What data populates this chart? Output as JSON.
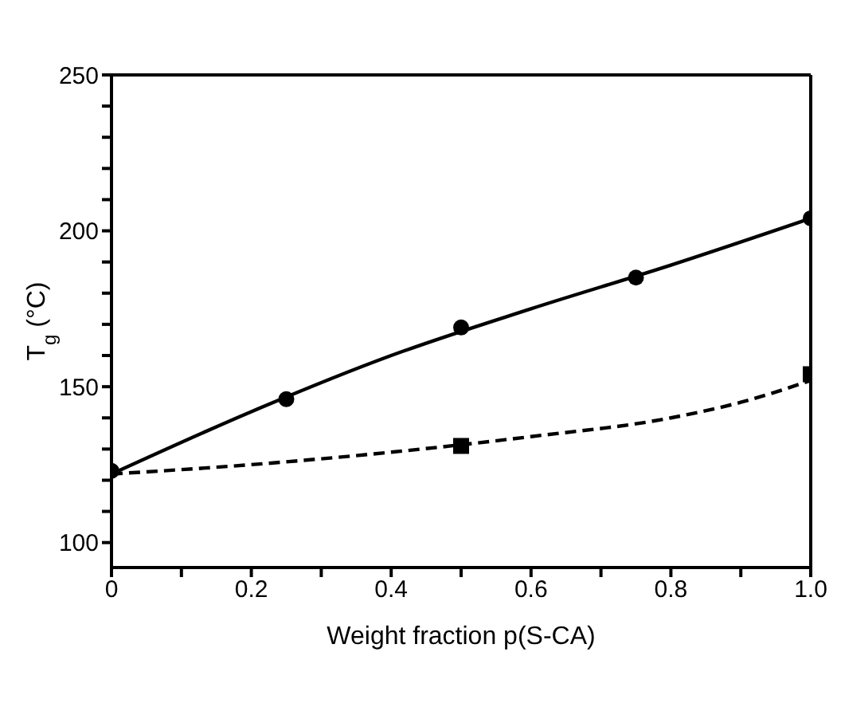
{
  "chart_data": {
    "type": "scatter",
    "xlabel": "Weight fraction p(S-CA)",
    "ylabel": "T$_{g}$ (°C)",
    "xlim": [
      0,
      1
    ],
    "ylim": [
      92,
      250
    ],
    "xticks": [
      0,
      {
        "value": 0.1,
        "label": null
      },
      {
        "value": 0.2,
        "label": "0.2"
      },
      {
        "value": 0.3,
        "label": null
      },
      {
        "value": 0.4,
        "label": "0.4"
      },
      {
        "value": 0.5,
        "label": null
      },
      {
        "value": 0.6,
        "label": "0.6"
      },
      {
        "value": 0.7,
        "label": null
      },
      {
        "value": 0.8,
        "label": "0.8"
      },
      {
        "value": 0.9,
        "label": null
      },
      {
        "value": 1,
        "label": "1.0"
      }
    ],
    "yticks": [
      100,
      {
        "value": 110,
        "label": null
      },
      {
        "value": 120,
        "label": null
      },
      {
        "value": 130,
        "label": null
      },
      {
        "value": 140,
        "label": null
      },
      150,
      {
        "value": 160,
        "label": null
      },
      {
        "value": 170,
        "label": null
      },
      {
        "value": 180,
        "label": null
      },
      {
        "value": 190,
        "label": null
      },
      200,
      {
        "value": 210,
        "label": null
      },
      {
        "value": 220,
        "label": null
      },
      {
        "value": 230,
        "label": null
      },
      {
        "value": 240,
        "label": null
      },
      250
    ],
    "grid": false,
    "series": [
      {
        "marker": "square",
        "color": "#000000",
        "x": [
          0.5,
          1
        ],
        "values": [
          131,
          154
        ]
      },
      {
        "marker": "circle",
        "color": "#000000",
        "x": [
          0,
          0.25,
          0.5,
          0.75,
          1
        ],
        "values": [
          123,
          146,
          169,
          185,
          204
        ]
      },
      {
        "type": "line",
        "line_style": "solid",
        "marker": "none",
        "color": "#000000",
        "x": [
          0,
          0.2,
          0.4,
          0.6,
          0.8,
          1
        ],
        "values": [
          122,
          142,
          160,
          175,
          189,
          204
        ]
      },
      {
        "type": "line",
        "line_style": "dashed",
        "marker": "none",
        "color": "#000000",
        "x": [
          0,
          0.2,
          0.4,
          0.6,
          0.8,
          0.9,
          1
        ],
        "values": [
          122,
          125,
          129,
          134,
          140,
          145,
          152
        ]
      }
    ]
  }
}
